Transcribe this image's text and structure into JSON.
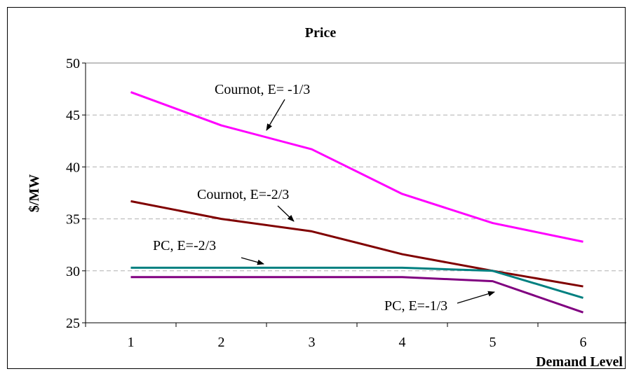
{
  "chart_data": {
    "type": "line",
    "title": "Price",
    "xlabel": "Demand Level",
    "ylabel": "$/MW",
    "categories": [
      "1",
      "2",
      "3",
      "4",
      "5",
      "6"
    ],
    "ylim": [
      25,
      50
    ],
    "yticks": [
      25,
      30,
      35,
      40,
      45,
      50
    ],
    "grid": "horizontal dashed",
    "series": [
      {
        "key": "cournot_e13",
        "values": [
          47.2,
          44.0,
          41.7,
          37.4,
          34.6,
          32.8
        ],
        "color": "#ff00ff"
      },
      {
        "key": "cournot_e23",
        "values": [
          36.7,
          35.0,
          33.8,
          31.6,
          30.0,
          28.5
        ],
        "color": "#800000"
      },
      {
        "key": "pc_e23",
        "values": [
          30.3,
          30.3,
          30.3,
          30.3,
          30.0,
          27.4
        ],
        "color": "#008080"
      },
      {
        "key": "pc_e13",
        "values": [
          29.4,
          29.4,
          29.4,
          29.4,
          29.0,
          26.0
        ],
        "color": "#800080"
      }
    ],
    "annotations": [
      {
        "text": "Cournot, E= -1/3"
      },
      {
        "text": "Cournot, E=-2/3"
      },
      {
        "text": "PC, E=-2/3"
      },
      {
        "text": "PC, E=-1/3"
      }
    ]
  }
}
